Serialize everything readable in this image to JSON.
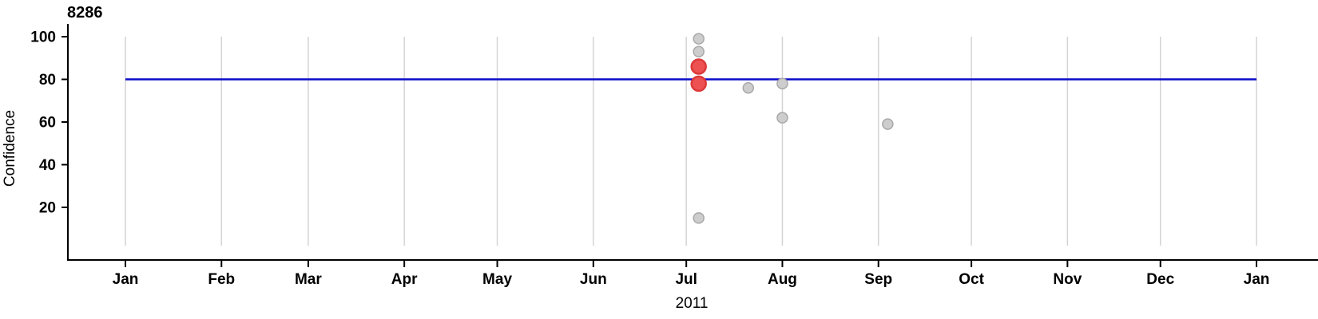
{
  "chart_data": {
    "type": "scatter",
    "title": "8286",
    "xlabel": "2011",
    "ylabel": "Confidence",
    "x_axis": {
      "kind": "time",
      "year": "2011",
      "tick_labels": [
        "Jan",
        "Feb",
        "Mar",
        "Apr",
        "May",
        "Jun",
        "Jul",
        "Aug",
        "Sep",
        "Oct",
        "Nov",
        "Dec",
        "Jan"
      ],
      "tick_days": [
        0,
        31,
        59,
        90,
        120,
        151,
        181,
        212,
        243,
        273,
        304,
        334,
        365
      ],
      "range_days": [
        0,
        365
      ]
    },
    "y_axis": {
      "label": "Confidence",
      "ticks": [
        100,
        80,
        60,
        40,
        20
      ],
      "range": [
        0,
        105
      ]
    },
    "grid": {
      "vertical_month_lines": true,
      "color": "#d4d4d4"
    },
    "reference_line": {
      "y": 80,
      "color": "#0c0cc9"
    },
    "series": [
      {
        "name": "highlighted",
        "marker": "large-circle",
        "fill": "#ed5151",
        "stroke": "#dc3a3a",
        "points": [
          {
            "date": "Jul 5",
            "day": 185,
            "confidence": 86
          },
          {
            "date": "Jul 5",
            "day": 185,
            "confidence": 78
          }
        ]
      },
      {
        "name": "regular",
        "marker": "small-circle",
        "fill": "#cdcdcd",
        "stroke": "#a8a8a8",
        "points": [
          {
            "date": "Jul 5",
            "day": 185,
            "confidence": 99
          },
          {
            "date": "Jul 5",
            "day": 185,
            "confidence": 93
          },
          {
            "date": "Jul 5",
            "day": 185,
            "confidence": 15
          },
          {
            "date": "Jul 21",
            "day": 201,
            "confidence": 76
          },
          {
            "date": "Aug 1",
            "day": 212,
            "confidence": 78
          },
          {
            "date": "Aug 1",
            "day": 212,
            "confidence": 62
          },
          {
            "date": "Sep 4",
            "day": 246,
            "confidence": 59
          }
        ]
      }
    ],
    "colors": {
      "axis": "#000000",
      "text": "#000000",
      "background": "#ffffff"
    }
  }
}
